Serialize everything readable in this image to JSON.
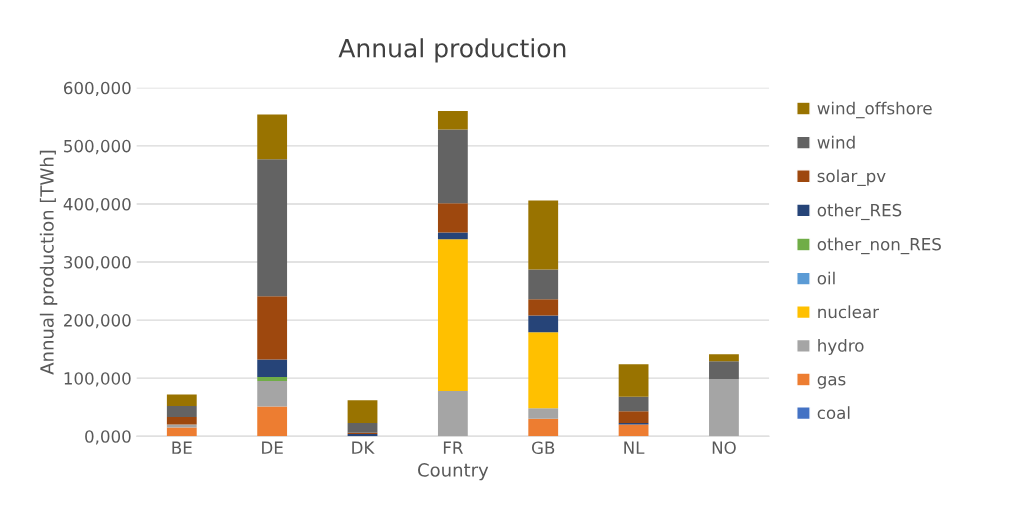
{
  "chart_data": {
    "type": "bar",
    "title": "Annual production",
    "xlabel": "Country",
    "ylabel": "Annual production [TWh]",
    "categories": [
      "BE",
      "DE",
      "DK",
      "FR",
      "GB",
      "NL",
      "NO"
    ],
    "stacked": true,
    "grid": "y",
    "legend": "right",
    "ylim": [
      0,
      600000
    ],
    "yticks": [
      {
        "value": 0,
        "label": "0,000"
      },
      {
        "value": 100000,
        "label": "100,000"
      },
      {
        "value": 200000,
        "label": "200,000"
      },
      {
        "value": 300000,
        "label": "300,000"
      },
      {
        "value": 400000,
        "label": "400,000"
      },
      {
        "value": 500000,
        "label": "500,000"
      },
      {
        "value": 600000,
        "label": "600,000"
      }
    ],
    "series": [
      {
        "name": "coal",
        "color": "#4472c4",
        "values": [
          0,
          0,
          0,
          0,
          0,
          0,
          0
        ]
      },
      {
        "name": "gas",
        "color": "#ed7d31",
        "values": [
          15000,
          51000,
          0,
          0,
          30000,
          20000,
          0
        ]
      },
      {
        "name": "hydro",
        "color": "#a5a5a5",
        "values": [
          5000,
          44000,
          0,
          78000,
          18000,
          0,
          98000
        ]
      },
      {
        "name": "nuclear",
        "color": "#ffc000",
        "values": [
          0,
          0,
          0,
          261000,
          131000,
          0,
          0
        ]
      },
      {
        "name": "oil",
        "color": "#5b9bd5",
        "values": [
          0,
          0,
          0,
          0,
          0,
          0,
          0
        ]
      },
      {
        "name": "other_non_RES",
        "color": "#70ad47",
        "values": [
          0,
          7000,
          0,
          0,
          0,
          0,
          0
        ]
      },
      {
        "name": "other_RES",
        "color": "#264478",
        "values": [
          0,
          30000,
          4000,
          12000,
          29000,
          3000,
          0
        ]
      },
      {
        "name": "solar_pv",
        "color": "#9e480e",
        "values": [
          13000,
          109000,
          2000,
          50000,
          28000,
          20000,
          0
        ]
      },
      {
        "name": "wind",
        "color": "#636363",
        "values": [
          19000,
          236000,
          17000,
          127000,
          51000,
          25000,
          31000
        ]
      },
      {
        "name": "wind_offshore",
        "color": "#997300",
        "values": [
          20000,
          77000,
          39000,
          32000,
          119000,
          56000,
          12000
        ]
      }
    ]
  }
}
